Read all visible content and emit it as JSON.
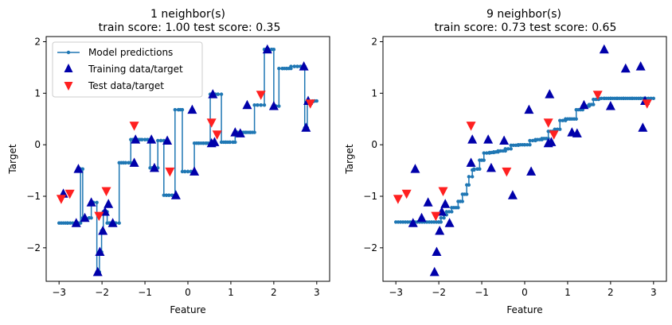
{
  "chart_data": [
    {
      "type": "scatter",
      "title": "1 neighbor(s)",
      "subtitle": "train score: 1.00 test score: 0.35",
      "xlabel": "Feature",
      "ylabel": "Target",
      "xlim": [
        -3.3,
        3.3
      ],
      "ylim": [
        -2.65,
        2.1
      ],
      "xticks": [
        -3,
        -2,
        -1,
        0,
        1,
        2,
        3
      ],
      "yticks": [
        -2,
        -1,
        0,
        1,
        2
      ],
      "legend": {
        "position": "top-left",
        "entries": [
          "Model predictions",
          "Training data/target",
          "Test data/target"
        ]
      },
      "colors": {
        "predictions": "#1f77b4",
        "train": "#0000aa",
        "test": "#ff2020"
      },
      "series": [
        {
          "name": "Model predictions",
          "kind": "step-line",
          "x": [
            -3.0,
            -2.8,
            -2.62,
            -2.55,
            -2.5,
            -2.45,
            -2.38,
            -2.3,
            -2.25,
            -2.2,
            -2.12,
            -2.06,
            -2.01,
            -1.97,
            -1.93,
            -1.88,
            -1.83,
            -1.78,
            -1.73,
            -1.68,
            -1.6,
            -1.55,
            -1.5,
            -1.45,
            -1.38,
            -1.33,
            -1.28,
            -1.23,
            -1.17,
            -1.12,
            -1.07,
            -1.0,
            -0.94,
            -0.88,
            -0.83,
            -0.78,
            -0.7,
            -0.63,
            -0.56,
            -0.5,
            -0.44,
            -0.37,
            -0.3,
            -0.22,
            -0.13,
            -0.07,
            0.0,
            0.07,
            0.15,
            0.25,
            0.36,
            0.42,
            0.52,
            0.58,
            0.64,
            0.7,
            0.78,
            0.88,
            0.98,
            1.05,
            1.1,
            1.15,
            1.25,
            1.35,
            1.45,
            1.55,
            1.62,
            1.7,
            1.78,
            1.82,
            1.88,
            1.95,
            2.0,
            2.05,
            2.12,
            2.2,
            2.3,
            2.4,
            2.48,
            2.55,
            2.62,
            2.68,
            2.72,
            2.78,
            2.84,
            2.9,
            2.95,
            3.0
          ],
          "y": [
            -1.52,
            -1.52,
            -1.52,
            -1.52,
            -0.47,
            -1.42,
            -1.42,
            -1.42,
            -1.12,
            -1.12,
            -2.47,
            -2.08,
            -1.67,
            -1.3,
            -1.3,
            -1.52,
            -1.52,
            -1.52,
            -1.52,
            -1.52,
            -0.35,
            -0.35,
            -0.35,
            -0.35,
            -0.35,
            0.1,
            0.1,
            0.1,
            0.1,
            0.1,
            0.1,
            0.1,
            0.1,
            -0.45,
            -0.45,
            -0.45,
            0.08,
            0.08,
            -0.98,
            -0.98,
            -0.98,
            -0.98,
            0.68,
            0.68,
            -0.52,
            -0.52,
            -0.52,
            -0.52,
            0.03,
            0.03,
            0.03,
            0.03,
            0.98,
            0.98,
            0.98,
            0.98,
            0.05,
            0.05,
            0.05,
            0.05,
            0.24,
            0.24,
            0.24,
            0.24,
            0.24,
            0.77,
            0.77,
            0.77,
            1.85,
            1.85,
            1.85,
            1.85,
            0.75,
            0.75,
            1.48,
            1.48,
            1.48,
            1.52,
            1.52,
            1.52,
            1.52,
            1.52,
            0.33,
            0.83,
            0.83,
            0.85,
            0.85,
            0.85
          ]
        },
        {
          "name": "Training data/target",
          "kind": "markers-up",
          "x": [
            -2.9,
            -2.6,
            -2.55,
            -2.4,
            -2.25,
            -2.1,
            -2.05,
            -1.98,
            -1.93,
            -1.85,
            -1.75,
            -1.25,
            -1.22,
            -0.85,
            -0.78,
            -0.48,
            -0.28,
            0.1,
            0.15,
            0.55,
            0.58,
            0.62,
            1.1,
            1.22,
            1.38,
            1.85,
            2.0,
            2.7,
            2.75,
            2.8
          ],
          "y": [
            -0.95,
            -1.52,
            -0.47,
            -1.42,
            -1.12,
            -2.47,
            -2.08,
            -1.67,
            -1.3,
            -1.15,
            -1.52,
            -0.35,
            0.1,
            0.1,
            -0.45,
            0.08,
            -0.98,
            0.68,
            -0.52,
            0.03,
            0.98,
            0.05,
            0.24,
            0.22,
            0.77,
            1.85,
            0.75,
            1.52,
            0.33,
            0.85
          ]
        },
        {
          "name": "Test data/target",
          "kind": "markers-down",
          "x": [
            -2.95,
            -2.75,
            -2.07,
            -1.9,
            -1.25,
            -0.42,
            0.55,
            0.68,
            1.7,
            2.85
          ],
          "y": [
            -1.05,
            -0.95,
            -1.38,
            -0.9,
            0.37,
            -0.52,
            0.43,
            0.2,
            0.97,
            0.8
          ]
        }
      ]
    },
    {
      "type": "scatter",
      "title": "9 neighbor(s)",
      "subtitle": "train score: 0.73 test score: 0.65",
      "xlabel": "Feature",
      "ylabel": "Target",
      "xlim": [
        -3.3,
        3.3
      ],
      "ylim": [
        -2.65,
        2.1
      ],
      "xticks": [
        -3,
        -2,
        -1,
        0,
        1,
        2,
        3
      ],
      "yticks": [
        -2,
        -1,
        0,
        1,
        2
      ],
      "colors": {
        "predictions": "#1f77b4",
        "train": "#0000aa",
        "test": "#ff2020"
      },
      "series": [
        {
          "name": "Model predictions",
          "kind": "step-line",
          "x": [
            -3.0,
            -2.0,
            -1.95,
            -1.88,
            -1.82,
            -1.7,
            -1.55,
            -1.45,
            -1.35,
            -1.3,
            -1.22,
            -1.18,
            -1.1,
            -1.05,
            -0.95,
            -0.82,
            -0.72,
            -0.62,
            -0.45,
            -0.32,
            -0.15,
            0.0,
            0.12,
            0.25,
            0.4,
            0.55,
            0.7,
            0.82,
            0.95,
            1.05,
            1.2,
            1.35,
            1.5,
            1.6,
            1.72,
            1.85,
            2.0,
            2.15,
            2.3,
            2.5,
            2.7,
            3.0
          ],
          "y": [
            -1.5,
            -1.5,
            -1.42,
            -1.36,
            -1.3,
            -1.22,
            -1.1,
            -0.96,
            -0.78,
            -0.62,
            -0.49,
            -0.47,
            -0.47,
            -0.3,
            -0.16,
            -0.15,
            -0.14,
            -0.12,
            -0.08,
            -0.01,
            0.0,
            0.0,
            0.08,
            0.1,
            0.12,
            0.26,
            0.3,
            0.47,
            0.5,
            0.5,
            0.68,
            0.75,
            0.78,
            0.88,
            0.9,
            0.9,
            0.9,
            0.9,
            0.9,
            0.9,
            0.9,
            0.9
          ]
        },
        {
          "name": "Training data/target",
          "kind": "markers-up",
          "x": [
            -2.6,
            -2.55,
            -2.4,
            -2.25,
            -2.1,
            -2.05,
            -1.98,
            -1.93,
            -1.85,
            -1.75,
            -1.25,
            -1.22,
            -0.85,
            -0.78,
            -0.48,
            -0.28,
            0.1,
            0.15,
            0.55,
            0.58,
            0.62,
            1.1,
            1.22,
            1.38,
            1.85,
            2.0,
            2.35,
            2.7,
            2.75,
            2.8
          ],
          "y": [
            -1.52,
            -0.47,
            -1.42,
            -1.12,
            -2.47,
            -2.08,
            -1.67,
            -1.3,
            -1.15,
            -1.52,
            -0.35,
            0.1,
            0.1,
            -0.45,
            0.08,
            -0.98,
            0.68,
            -0.52,
            0.03,
            0.98,
            0.05,
            0.24,
            0.22,
            0.77,
            1.85,
            0.75,
            1.48,
            1.52,
            0.33,
            0.85
          ]
        },
        {
          "name": "Test data/target",
          "kind": "markers-down",
          "x": [
            -2.95,
            -2.75,
            -2.07,
            -1.9,
            -1.25,
            -0.42,
            0.55,
            0.68,
            1.7,
            2.85
          ],
          "y": [
            -1.05,
            -0.95,
            -1.38,
            -0.9,
            0.37,
            -0.52,
            0.43,
            0.2,
            0.97,
            0.8
          ]
        }
      ]
    }
  ]
}
